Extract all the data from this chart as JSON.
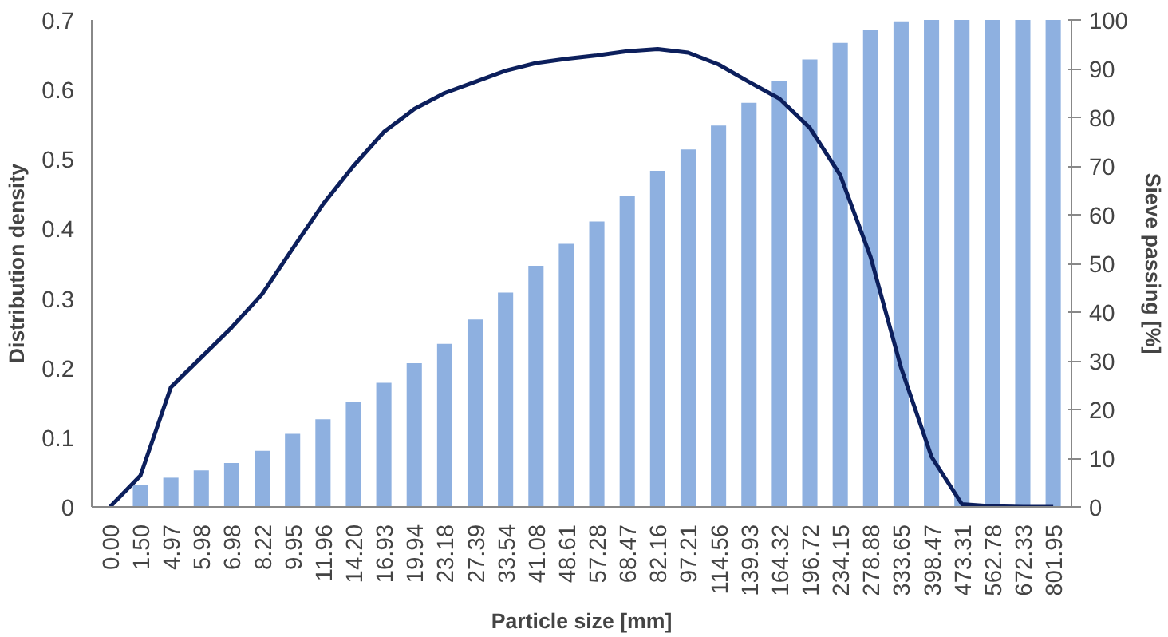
{
  "chart_data": {
    "type": "bar",
    "xlabel": "Particle size [mm]",
    "ylabel": "Distribution density",
    "y2label": "Sieve passing [%]",
    "categories": [
      "0.00",
      "1.50",
      "4.97",
      "5.98",
      "6.98",
      "8.22",
      "9.95",
      "11.96",
      "14.20",
      "16.93",
      "19.94",
      "23.18",
      "27.39",
      "33.54",
      "41.08",
      "48.61",
      "57.28",
      "68.47",
      "82.16",
      "97.21",
      "114.56",
      "139.93",
      "164.32",
      "196.72",
      "234.15",
      "278.88",
      "333.65",
      "398.47",
      "473.31",
      "562.78",
      "672.33",
      "801.95"
    ],
    "series": [
      {
        "axis": "y2",
        "color": "#8eb0e0",
        "values": [
          0,
          4.5,
          6,
          7.5,
          9,
          11.5,
          15,
          18,
          21.5,
          25.5,
          29.5,
          33.5,
          38.5,
          44,
          49.5,
          54,
          58.6,
          63.8,
          69,
          73.4,
          78.3,
          83,
          87.5,
          91.9,
          95.3,
          98,
          99.7,
          100,
          100,
          100,
          100,
          100
        ]
      },
      {
        "type": "line",
        "color": "#0c1f5c",
        "values": [
          0,
          0.045,
          0.172,
          0.215,
          0.258,
          0.306,
          0.371,
          0.435,
          0.49,
          0.539,
          0.572,
          0.595,
          0.611,
          0.627,
          0.638,
          0.644,
          0.649,
          0.655,
          0.658,
          0.653,
          0.636,
          0.611,
          0.587,
          0.545,
          0.477,
          0.359,
          0.2,
          0.072,
          0.004,
          0.001,
          0,
          0
        ]
      }
    ],
    "ylim": [
      0,
      0.7
    ],
    "yticks": [
      0,
      0.1,
      0.2,
      0.3,
      0.4,
      0.5,
      0.6,
      0.7
    ],
    "y2lim": [
      0,
      100
    ],
    "y2ticks": [
      0,
      10,
      20,
      30,
      40,
      50,
      60,
      70,
      80,
      90,
      100
    ],
    "grid": false
  }
}
